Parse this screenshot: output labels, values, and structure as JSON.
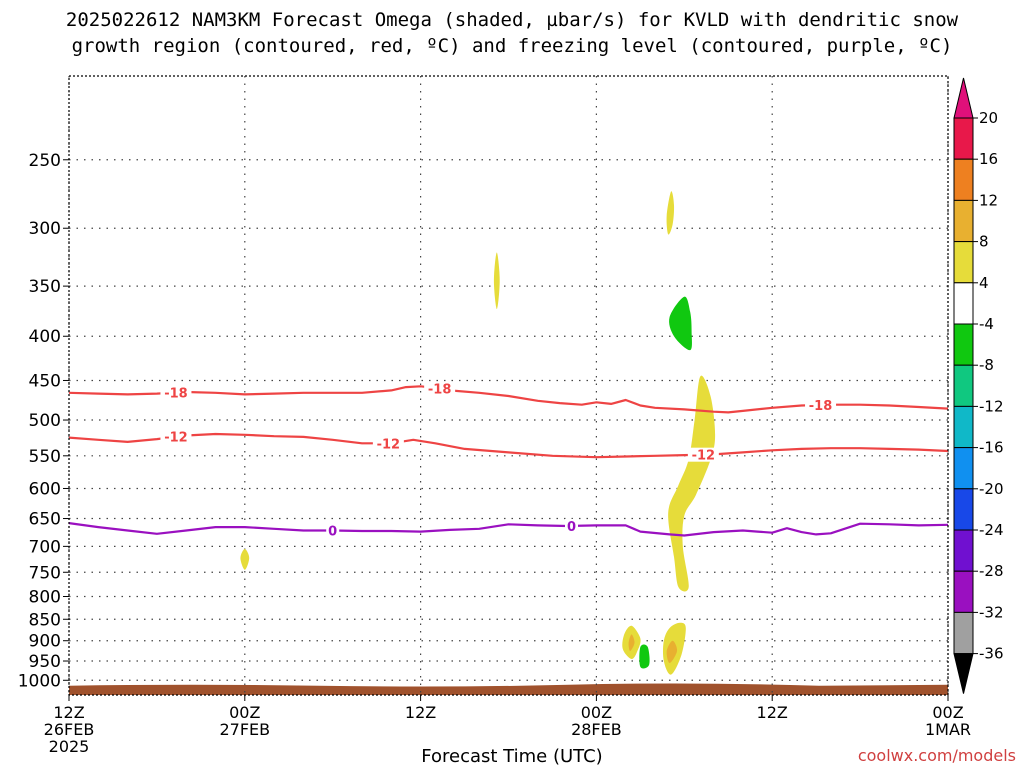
{
  "chart_data": {
    "type": "heatmap",
    "title_line1": "2025022612 NAM3KM Forecast Omega (shaded, µbar/s) for KVLD with dendritic snow",
    "title_line2": "growth region (contoured, red, ºC) and freezing level (contoured, purple, ºC)",
    "xlabel": "Forecast Time (UTC)",
    "credit": "coolwx.com/models",
    "y_scale": "log-pressure",
    "y_reversed": true,
    "ylim": [
      200,
      1040
    ],
    "y_ticks": [
      250,
      300,
      350,
      400,
      450,
      500,
      550,
      600,
      650,
      700,
      750,
      800,
      850,
      900,
      950,
      1000
    ],
    "xlim": [
      0,
      60
    ],
    "x_ticks": [
      {
        "x": 0,
        "line1": "12Z",
        "line2": "26FEB",
        "line3": "2025"
      },
      {
        "x": 12,
        "line1": "00Z",
        "line2": "27FEB",
        "line3": ""
      },
      {
        "x": 24,
        "line1": "12Z",
        "line2": "",
        "line3": ""
      },
      {
        "x": 36,
        "line1": "00Z",
        "line2": "28FEB",
        "line3": ""
      },
      {
        "x": 48,
        "line1": "12Z",
        "line2": "",
        "line3": ""
      },
      {
        "x": 60,
        "line1": "00Z",
        "line2": "1MAR",
        "line3": ""
      }
    ],
    "grid": true,
    "colorbar": {
      "placement": "right",
      "boundaries": [
        -36,
        -32,
        -28,
        -24,
        -20,
        -16,
        -12,
        -8,
        -4,
        4,
        8,
        12,
        16,
        20
      ],
      "labels": [
        "20",
        "16",
        "12",
        "8",
        "4",
        "-4",
        "-8",
        "-12",
        "-16",
        "-20",
        "-24",
        "-28",
        "-32",
        "-36"
      ],
      "colors_top_to_bottom": [
        "#e8184a",
        "#ee8020",
        "#e8b030",
        "#e6dc3a",
        "#ffffff",
        "#10c810",
        "#10c880",
        "#10b8c8",
        "#1090f0",
        "#1848e8",
        "#7010d0",
        "#9a10c0",
        "#a0a0a0"
      ],
      "top_extend_color": "#e0107a",
      "bottom_extend_color": "#000000"
    },
    "contours": [
      {
        "level": "-18",
        "color": "#ee4444",
        "labels_x": [
          7.3,
          25.3,
          51.3
        ],
        "points": [
          [
            0,
            465
          ],
          [
            2,
            466
          ],
          [
            4,
            467
          ],
          [
            6,
            466
          ],
          [
            8,
            464
          ],
          [
            10,
            465
          ],
          [
            12,
            467
          ],
          [
            14,
            466
          ],
          [
            16,
            465
          ],
          [
            18,
            465
          ],
          [
            20,
            465
          ],
          [
            22,
            462
          ],
          [
            23,
            458
          ],
          [
            24,
            457
          ],
          [
            25,
            459
          ],
          [
            26,
            462
          ],
          [
            28,
            465
          ],
          [
            30,
            469
          ],
          [
            32,
            475
          ],
          [
            33.5,
            478
          ],
          [
            35,
            480
          ],
          [
            36,
            477
          ],
          [
            37,
            479
          ],
          [
            38,
            474
          ],
          [
            39,
            481
          ],
          [
            40,
            484
          ],
          [
            42,
            486
          ],
          [
            44,
            489
          ],
          [
            45,
            490
          ],
          [
            46,
            488
          ],
          [
            48,
            484
          ],
          [
            50,
            481
          ],
          [
            52,
            480
          ],
          [
            54,
            480
          ],
          [
            56,
            481
          ],
          [
            58,
            483
          ],
          [
            60,
            485
          ]
        ]
      },
      {
        "level": "-12",
        "color": "#ee4444",
        "labels_x": [
          7.3,
          21.8,
          43.3
        ],
        "points": [
          [
            0,
            524
          ],
          [
            2,
            527
          ],
          [
            4,
            530
          ],
          [
            6,
            526
          ],
          [
            8,
            521
          ],
          [
            10,
            519
          ],
          [
            12,
            520
          ],
          [
            14,
            522
          ],
          [
            16,
            523
          ],
          [
            18,
            527
          ],
          [
            20,
            532
          ],
          [
            22,
            532
          ],
          [
            23.5,
            527
          ],
          [
            25,
            532
          ],
          [
            27,
            540
          ],
          [
            30,
            545
          ],
          [
            33,
            550
          ],
          [
            36,
            552
          ],
          [
            38,
            551
          ],
          [
            40,
            550
          ],
          [
            42,
            549
          ],
          [
            44,
            548
          ],
          [
            46,
            545
          ],
          [
            48,
            542
          ],
          [
            50,
            540
          ],
          [
            52,
            539
          ],
          [
            54,
            539
          ],
          [
            56,
            540
          ],
          [
            58,
            541
          ],
          [
            60,
            543
          ]
        ]
      },
      {
        "level": "0",
        "color": "#9a10c0",
        "labels_x": [
          18,
          34.3
        ],
        "points": [
          [
            0,
            658
          ],
          [
            2,
            665
          ],
          [
            4,
            671
          ],
          [
            6,
            677
          ],
          [
            8,
            671
          ],
          [
            10,
            665
          ],
          [
            12,
            665
          ],
          [
            14,
            668
          ],
          [
            16,
            671
          ],
          [
            18,
            671
          ],
          [
            20,
            672
          ],
          [
            22,
            672
          ],
          [
            24,
            673
          ],
          [
            26,
            670
          ],
          [
            28,
            668
          ],
          [
            30,
            660
          ],
          [
            32,
            662
          ],
          [
            34,
            663
          ],
          [
            36,
            662
          ],
          [
            38,
            662
          ],
          [
            39,
            673
          ],
          [
            41,
            678
          ],
          [
            42,
            680
          ],
          [
            44,
            674
          ],
          [
            46,
            671
          ],
          [
            47,
            673
          ],
          [
            48,
            675
          ],
          [
            49,
            667
          ],
          [
            50,
            674
          ],
          [
            51,
            678
          ],
          [
            52,
            676
          ],
          [
            54,
            659
          ],
          [
            56,
            660
          ],
          [
            58,
            662
          ],
          [
            60,
            661
          ]
        ]
      }
    ],
    "omega_blobs": [
      {
        "value_range": "4 to 8",
        "color": "#e6dc3a",
        "points": [
          [
            41.1,
            272
          ],
          [
            41.3,
            282
          ],
          [
            41.2,
            297
          ],
          [
            40.9,
            305
          ],
          [
            40.8,
            290
          ]
        ]
      },
      {
        "value_range": "4 to 8",
        "color": "#e6dc3a",
        "points": [
          [
            29.2,
            320
          ],
          [
            29.4,
            345
          ],
          [
            29.2,
            372
          ],
          [
            29.0,
            345
          ]
        ]
      },
      {
        "value_range": "4 to 8",
        "color": "#e6dc3a",
        "points": [
          [
            12.0,
            705
          ],
          [
            12.3,
            722
          ],
          [
            12.0,
            745
          ],
          [
            11.7,
            722
          ]
        ]
      },
      {
        "value_range": "-4 to -8",
        "color": "#10c810",
        "points": [
          [
            42.0,
            360
          ],
          [
            42.4,
            375
          ],
          [
            42.5,
            395
          ],
          [
            42.4,
            415
          ],
          [
            41.3,
            400
          ],
          [
            41.0,
            380
          ]
        ]
      },
      {
        "value_range": "4 to 8",
        "color": "#e6dc3a",
        "points": [
          [
            43.1,
            445
          ],
          [
            43.8,
            470
          ],
          [
            44.1,
            520
          ],
          [
            43.8,
            555
          ],
          [
            42.8,
            610
          ],
          [
            42.0,
            645
          ],
          [
            41.9,
            700
          ],
          [
            42.3,
            780
          ],
          [
            41.6,
            780
          ],
          [
            41.3,
            720
          ],
          [
            40.9,
            640
          ],
          [
            41.6,
            595
          ],
          [
            42.3,
            555
          ],
          [
            42.7,
            500
          ]
        ]
      },
      {
        "value_range": "4 to 8",
        "color": "#e6dc3a",
        "points": [
          [
            38.4,
            865
          ],
          [
            39.0,
            895
          ],
          [
            38.8,
            925
          ],
          [
            38.4,
            945
          ],
          [
            37.8,
            920
          ],
          [
            37.9,
            885
          ]
        ]
      },
      {
        "value_range": "8 to 12",
        "color": "#e8b030",
        "points": [
          [
            38.4,
            885
          ],
          [
            38.6,
            905
          ],
          [
            38.3,
            925
          ],
          [
            38.2,
            905
          ]
        ]
      },
      {
        "value_range": "4 to 8",
        "color": "#e6dc3a",
        "points": [
          [
            41.7,
            858
          ],
          [
            42.1,
            870
          ],
          [
            41.8,
            935
          ],
          [
            41.1,
            985
          ],
          [
            40.6,
            950
          ],
          [
            40.6,
            900
          ],
          [
            41.0,
            870
          ]
        ]
      },
      {
        "value_range": "8 to 12",
        "color": "#e8b030",
        "points": [
          [
            41.2,
            900
          ],
          [
            41.5,
            925
          ],
          [
            41.0,
            955
          ],
          [
            40.8,
            925
          ]
        ]
      },
      {
        "value_range": "-4 to -8",
        "color": "#10c810",
        "points": [
          [
            39.0,
            915
          ],
          [
            39.5,
            915
          ],
          [
            39.6,
            960
          ],
          [
            39.0,
            965
          ]
        ]
      }
    ],
    "terrain": {
      "color": "#a0522d",
      "top_pressure": 1012
    }
  }
}
